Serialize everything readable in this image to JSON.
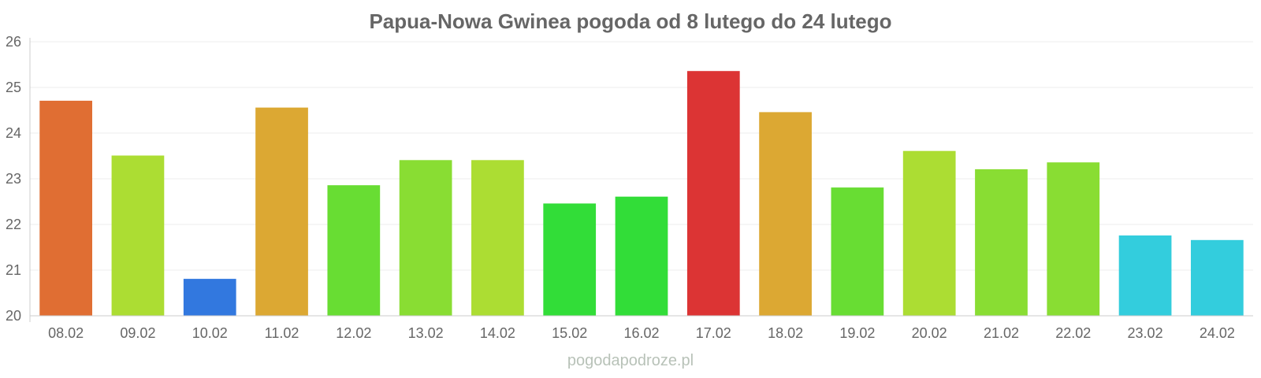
{
  "chart_data": {
    "type": "bar",
    "title": "Papua-Nowa Gwinea pogoda od 8 lutego do 24 lutego",
    "xlabel": "",
    "ylabel": "",
    "ylim": [
      20,
      26
    ],
    "yticks": [
      "20",
      "21",
      "22",
      "23",
      "24",
      "25",
      "26"
    ],
    "grid": true,
    "legend": "none",
    "categories": [
      "08.02",
      "09.02",
      "10.02",
      "11.02",
      "12.02",
      "13.02",
      "14.02",
      "15.02",
      "16.02",
      "17.02",
      "18.02",
      "19.02",
      "20.02",
      "21.02",
      "22.02",
      "23.02",
      "24.02"
    ],
    "values": [
      24.7,
      23.5,
      20.8,
      24.55,
      22.85,
      23.4,
      23.4,
      22.45,
      22.6,
      25.35,
      24.45,
      22.8,
      23.6,
      23.2,
      23.35,
      21.75,
      21.65
    ],
    "colors": [
      "#e06e33",
      "#acdd33",
      "#3278df",
      "#dca833",
      "#68dd33",
      "#89dd33",
      "#acdd33",
      "#32dd38",
      "#32dd38",
      "#dc3434",
      "#dca833",
      "#68dd33",
      "#acdd33",
      "#89dd33",
      "#89dd33",
      "#33cddd",
      "#33cddd"
    ]
  },
  "watermark": "pogodapodroze.pl"
}
